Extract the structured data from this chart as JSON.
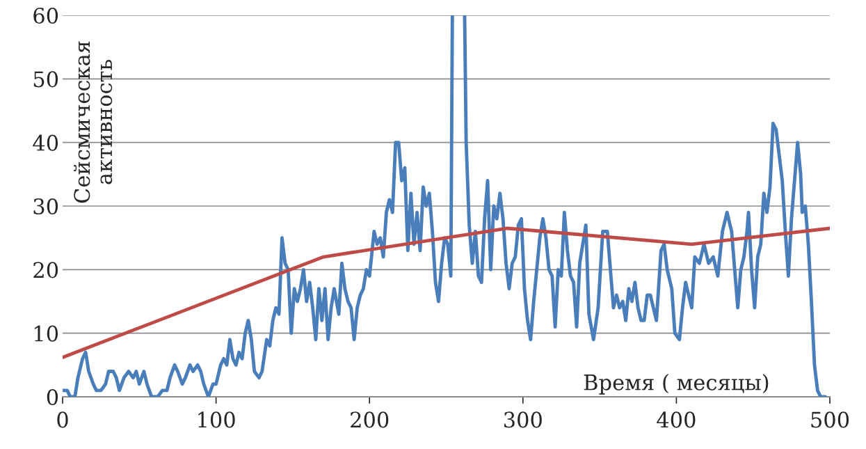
{
  "chart_data": {
    "type": "line",
    "xlabel": "Время ( месяцы)",
    "ylabel": "Сейсмическая активность",
    "xlim": [
      0,
      500
    ],
    "ylim": [
      0,
      60
    ],
    "xticks": [
      0,
      100,
      200,
      300,
      400,
      500
    ],
    "yticks": [
      0,
      10,
      20,
      30,
      40,
      50,
      60
    ],
    "grid": "y",
    "legend": false,
    "marker": "none",
    "line_style": "solid",
    "series": [
      {
        "color": "#4a7ebb",
        "x": [
          0,
          3,
          5,
          8,
          10,
          13,
          15,
          17,
          20,
          22,
          25,
          28,
          30,
          33,
          35,
          37,
          40,
          43,
          46,
          48,
          50,
          53,
          55,
          58,
          62,
          65,
          68,
          70,
          73,
          75,
          78,
          80,
          83,
          85,
          88,
          90,
          92,
          95,
          98,
          100,
          103,
          105,
          107,
          109,
          111,
          113,
          115,
          117,
          119,
          121,
          123,
          125,
          128,
          130,
          133,
          135,
          137,
          139,
          141,
          143,
          145,
          147,
          149,
          151,
          153,
          155,
          157,
          159,
          161,
          163,
          165,
          167,
          169,
          171,
          173,
          175,
          177,
          180,
          182,
          184,
          186,
          188,
          190,
          192,
          194,
          196,
          198,
          200,
          203,
          205,
          207,
          209,
          211,
          213,
          215,
          217,
          219,
          221,
          223,
          225,
          227,
          229,
          231,
          233,
          235,
          237,
          239,
          241,
          243,
          245,
          247,
          249,
          251,
          253,
          254,
          257,
          262,
          263,
          265,
          267,
          269,
          271,
          273,
          275,
          277,
          279,
          281,
          283,
          285,
          287,
          289,
          291,
          293,
          295,
          297,
          299,
          301,
          303,
          305,
          307,
          309,
          311,
          313,
          315,
          317,
          319,
          321,
          323,
          325,
          327,
          329,
          331,
          333,
          335,
          337,
          339,
          341,
          343,
          346,
          349,
          352,
          355,
          357,
          359,
          361,
          363,
          365,
          367,
          369,
          371,
          373,
          375,
          377,
          379,
          381,
          383,
          385,
          387,
          390,
          392,
          394,
          397,
          399,
          402,
          404,
          406,
          408,
          410,
          412,
          415,
          418,
          421,
          424,
          427,
          430,
          433,
          436,
          438,
          440,
          442,
          444,
          446,
          447,
          449,
          451,
          453,
          455,
          457,
          459,
          461,
          463,
          465,
          467,
          469,
          471,
          473,
          475,
          477,
          479,
          481,
          482,
          484,
          486,
          488,
          490,
          492,
          494,
          497
        ],
        "values": [
          1,
          1,
          0,
          0,
          3,
          6,
          7,
          4,
          2,
          1,
          1,
          2,
          4,
          4,
          3,
          1,
          3,
          4,
          3,
          4,
          2,
          4,
          2,
          0,
          0,
          1,
          1,
          3,
          5,
          4,
          2,
          3,
          5,
          4,
          5,
          4,
          2,
          0,
          2,
          2,
          5,
          6,
          5,
          9,
          6,
          5,
          7,
          6,
          10,
          12,
          9,
          4,
          3,
          4,
          9,
          8,
          12,
          14,
          13,
          25,
          21,
          20,
          10,
          17,
          15,
          17,
          20,
          15,
          18,
          14,
          9,
          17,
          12,
          17,
          9,
          14,
          17,
          13,
          21,
          17,
          15,
          14,
          9,
          14,
          16,
          17,
          20,
          19,
          26,
          24,
          25,
          22,
          29,
          31,
          29,
          40,
          40,
          34,
          36,
          23,
          32,
          24,
          29,
          23,
          33,
          30,
          32,
          26,
          18,
          15,
          21,
          25,
          24,
          19,
          60,
          null,
          60,
          40,
          27,
          21,
          26,
          19,
          18,
          28,
          34,
          20,
          30,
          28,
          32,
          28,
          21,
          17,
          21,
          22,
          27,
          28,
          17,
          12,
          9,
          15,
          20,
          25,
          28,
          25,
          20,
          19,
          11,
          20,
          19,
          29,
          23,
          19,
          18,
          11,
          21,
          24,
          27,
          13,
          9,
          14,
          26,
          26,
          20,
          14,
          16,
          14,
          15,
          12,
          17,
          15,
          18,
          14,
          12,
          12,
          16,
          16,
          14,
          12,
          23,
          24,
          20,
          17,
          10,
          9,
          14,
          18,
          16,
          14,
          22,
          21,
          24,
          21,
          22,
          19,
          26,
          29,
          26,
          20,
          14,
          20,
          22,
          26,
          29,
          20,
          14,
          22,
          24,
          32,
          29,
          33,
          43,
          42,
          38,
          34,
          26,
          19,
          28,
          34,
          40,
          35,
          29,
          30,
          24,
          15,
          5,
          1,
          0,
          0
        ]
      },
      {
        "color": "#be4b48",
        "x": [
          0,
          170,
          290,
          410,
          500
        ],
        "values": [
          6.2,
          22,
          26.5,
          24,
          26.5
        ]
      }
    ]
  }
}
